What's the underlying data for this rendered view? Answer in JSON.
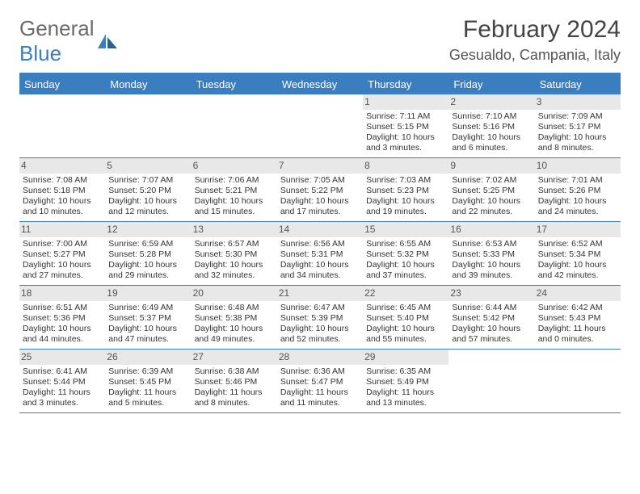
{
  "logo": {
    "general": "General",
    "blue": "Blue"
  },
  "title": "February 2024",
  "location": "Gesualdo, Campania, Italy",
  "colors": {
    "header_bg": "#3a7ebf",
    "border": "#3a7ebf",
    "shade": "#e8e8e8",
    "text": "#333333",
    "title_text": "#444444"
  },
  "day_headers": [
    "Sunday",
    "Monday",
    "Tuesday",
    "Wednesday",
    "Thursday",
    "Friday",
    "Saturday"
  ],
  "weeks": [
    [
      null,
      null,
      null,
      null,
      {
        "n": "1",
        "sr": "7:11 AM",
        "ss": "5:15 PM",
        "dl": "10 hours and 3 minutes."
      },
      {
        "n": "2",
        "sr": "7:10 AM",
        "ss": "5:16 PM",
        "dl": "10 hours and 6 minutes."
      },
      {
        "n": "3",
        "sr": "7:09 AM",
        "ss": "5:17 PM",
        "dl": "10 hours and 8 minutes."
      }
    ],
    [
      {
        "n": "4",
        "sr": "7:08 AM",
        "ss": "5:18 PM",
        "dl": "10 hours and 10 minutes."
      },
      {
        "n": "5",
        "sr": "7:07 AM",
        "ss": "5:20 PM",
        "dl": "10 hours and 12 minutes."
      },
      {
        "n": "6",
        "sr": "7:06 AM",
        "ss": "5:21 PM",
        "dl": "10 hours and 15 minutes."
      },
      {
        "n": "7",
        "sr": "7:05 AM",
        "ss": "5:22 PM",
        "dl": "10 hours and 17 minutes."
      },
      {
        "n": "8",
        "sr": "7:03 AM",
        "ss": "5:23 PM",
        "dl": "10 hours and 19 minutes."
      },
      {
        "n": "9",
        "sr": "7:02 AM",
        "ss": "5:25 PM",
        "dl": "10 hours and 22 minutes."
      },
      {
        "n": "10",
        "sr": "7:01 AM",
        "ss": "5:26 PM",
        "dl": "10 hours and 24 minutes."
      }
    ],
    [
      {
        "n": "11",
        "sr": "7:00 AM",
        "ss": "5:27 PM",
        "dl": "10 hours and 27 minutes."
      },
      {
        "n": "12",
        "sr": "6:59 AM",
        "ss": "5:28 PM",
        "dl": "10 hours and 29 minutes."
      },
      {
        "n": "13",
        "sr": "6:57 AM",
        "ss": "5:30 PM",
        "dl": "10 hours and 32 minutes."
      },
      {
        "n": "14",
        "sr": "6:56 AM",
        "ss": "5:31 PM",
        "dl": "10 hours and 34 minutes."
      },
      {
        "n": "15",
        "sr": "6:55 AM",
        "ss": "5:32 PM",
        "dl": "10 hours and 37 minutes."
      },
      {
        "n": "16",
        "sr": "6:53 AM",
        "ss": "5:33 PM",
        "dl": "10 hours and 39 minutes."
      },
      {
        "n": "17",
        "sr": "6:52 AM",
        "ss": "5:34 PM",
        "dl": "10 hours and 42 minutes."
      }
    ],
    [
      {
        "n": "18",
        "sr": "6:51 AM",
        "ss": "5:36 PM",
        "dl": "10 hours and 44 minutes."
      },
      {
        "n": "19",
        "sr": "6:49 AM",
        "ss": "5:37 PM",
        "dl": "10 hours and 47 minutes."
      },
      {
        "n": "20",
        "sr": "6:48 AM",
        "ss": "5:38 PM",
        "dl": "10 hours and 49 minutes."
      },
      {
        "n": "21",
        "sr": "6:47 AM",
        "ss": "5:39 PM",
        "dl": "10 hours and 52 minutes."
      },
      {
        "n": "22",
        "sr": "6:45 AM",
        "ss": "5:40 PM",
        "dl": "10 hours and 55 minutes."
      },
      {
        "n": "23",
        "sr": "6:44 AM",
        "ss": "5:42 PM",
        "dl": "10 hours and 57 minutes."
      },
      {
        "n": "24",
        "sr": "6:42 AM",
        "ss": "5:43 PM",
        "dl": "11 hours and 0 minutes."
      }
    ],
    [
      {
        "n": "25",
        "sr": "6:41 AM",
        "ss": "5:44 PM",
        "dl": "11 hours and 3 minutes."
      },
      {
        "n": "26",
        "sr": "6:39 AM",
        "ss": "5:45 PM",
        "dl": "11 hours and 5 minutes."
      },
      {
        "n": "27",
        "sr": "6:38 AM",
        "ss": "5:46 PM",
        "dl": "11 hours and 8 minutes."
      },
      {
        "n": "28",
        "sr": "6:36 AM",
        "ss": "5:47 PM",
        "dl": "11 hours and 11 minutes."
      },
      {
        "n": "29",
        "sr": "6:35 AM",
        "ss": "5:49 PM",
        "dl": "11 hours and 13 minutes."
      },
      null,
      null
    ]
  ],
  "labels": {
    "sunrise": "Sunrise:",
    "sunset": "Sunset:",
    "daylight": "Daylight:"
  }
}
